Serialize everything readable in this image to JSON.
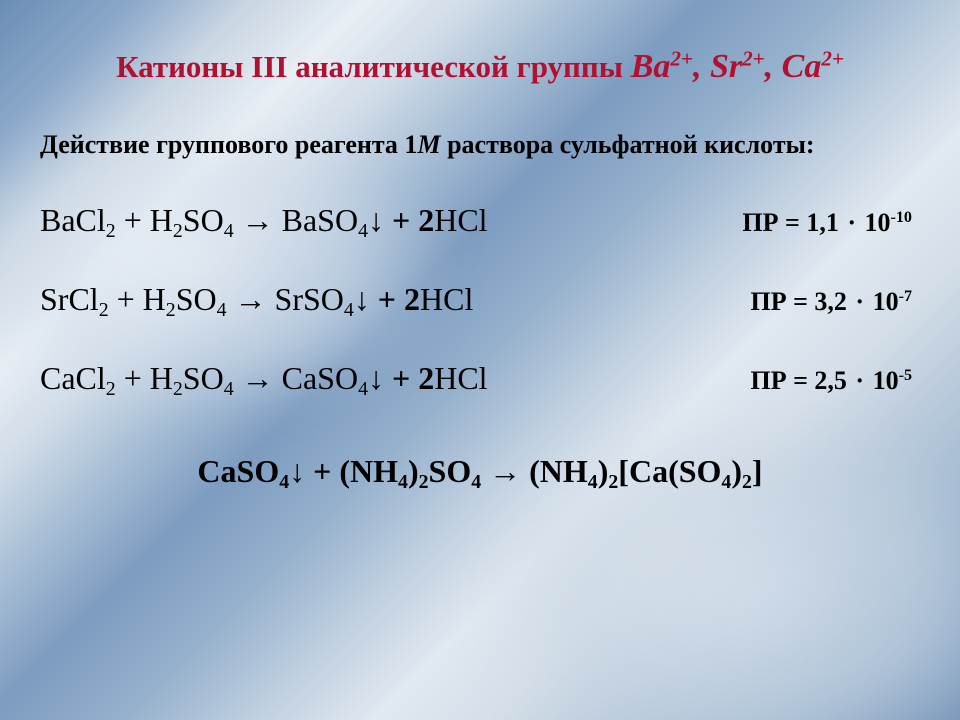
{
  "title": {
    "prefix": "Катионы III аналитической группы ",
    "ions": "Ba²⁺, Sr²⁺, Ca²⁺",
    "ion_color": "#b11030",
    "fontsize": 31
  },
  "intro": {
    "text_before_M": "Действие группового реагента 1",
    "M": "М",
    "text_after_M": " раствора сульфатной кислоты:",
    "fontsize": 26
  },
  "equations": [
    {
      "lhs1": "BaCl",
      "lhs1_sub": "2",
      "lhs2": "H",
      "lhs2_sub": "2",
      "lhs2b": "SO",
      "lhs2b_sub": "4",
      "prod": "BaSO",
      "prod_sub": "4",
      "hcl_coef": "2",
      "hcl": "HCl",
      "pr_label": "ПР = 1,1",
      "pr_exp_base": "10",
      "pr_exp": "-10"
    },
    {
      "lhs1": "SrCl",
      "lhs1_sub": "2",
      "lhs2": "H",
      "lhs2_sub": "2",
      "lhs2b": "SO",
      "lhs2b_sub": "4",
      "prod": "SrSO",
      "prod_sub": "4",
      "hcl_coef": "2",
      "hcl": "HCl",
      "pr_label": "ПР = 3,2",
      "pr_exp_base": "10",
      "pr_exp": "-7"
    },
    {
      "lhs1": "CaCl",
      "lhs1_sub": "2",
      "lhs2": "H",
      "lhs2_sub": "2",
      "lhs2b": "SO",
      "lhs2b_sub": "4",
      "prod": "CaSO",
      "prod_sub": "4",
      "hcl_coef": "2",
      "hcl": "HCl",
      "pr_label": "ПР = 2,5",
      "pr_exp_base": "10",
      "pr_exp": "-5"
    }
  ],
  "final_equation": {
    "a": "CaSO",
    "a_sub": "4",
    "b": "(NH",
    "b_sub1": "4",
    "b_mid": ")",
    "b_sub2": "2",
    "b_end": "SO",
    "b_sub3": "4",
    "c": "(NH",
    "c_sub1": "4",
    "c_mid": ")",
    "c_sub2": "2",
    "c_br_open": "[Ca(SO",
    "c_sub3": "4",
    "c_br_mid": ")",
    "c_sub4": "2",
    "c_br_close": "]"
  },
  "symbols": {
    "plus": " + ",
    "rarr": " → ",
    "darr": "↓",
    "cdot": " · "
  },
  "colors": {
    "title": "#b11030",
    "text": "#000000"
  }
}
